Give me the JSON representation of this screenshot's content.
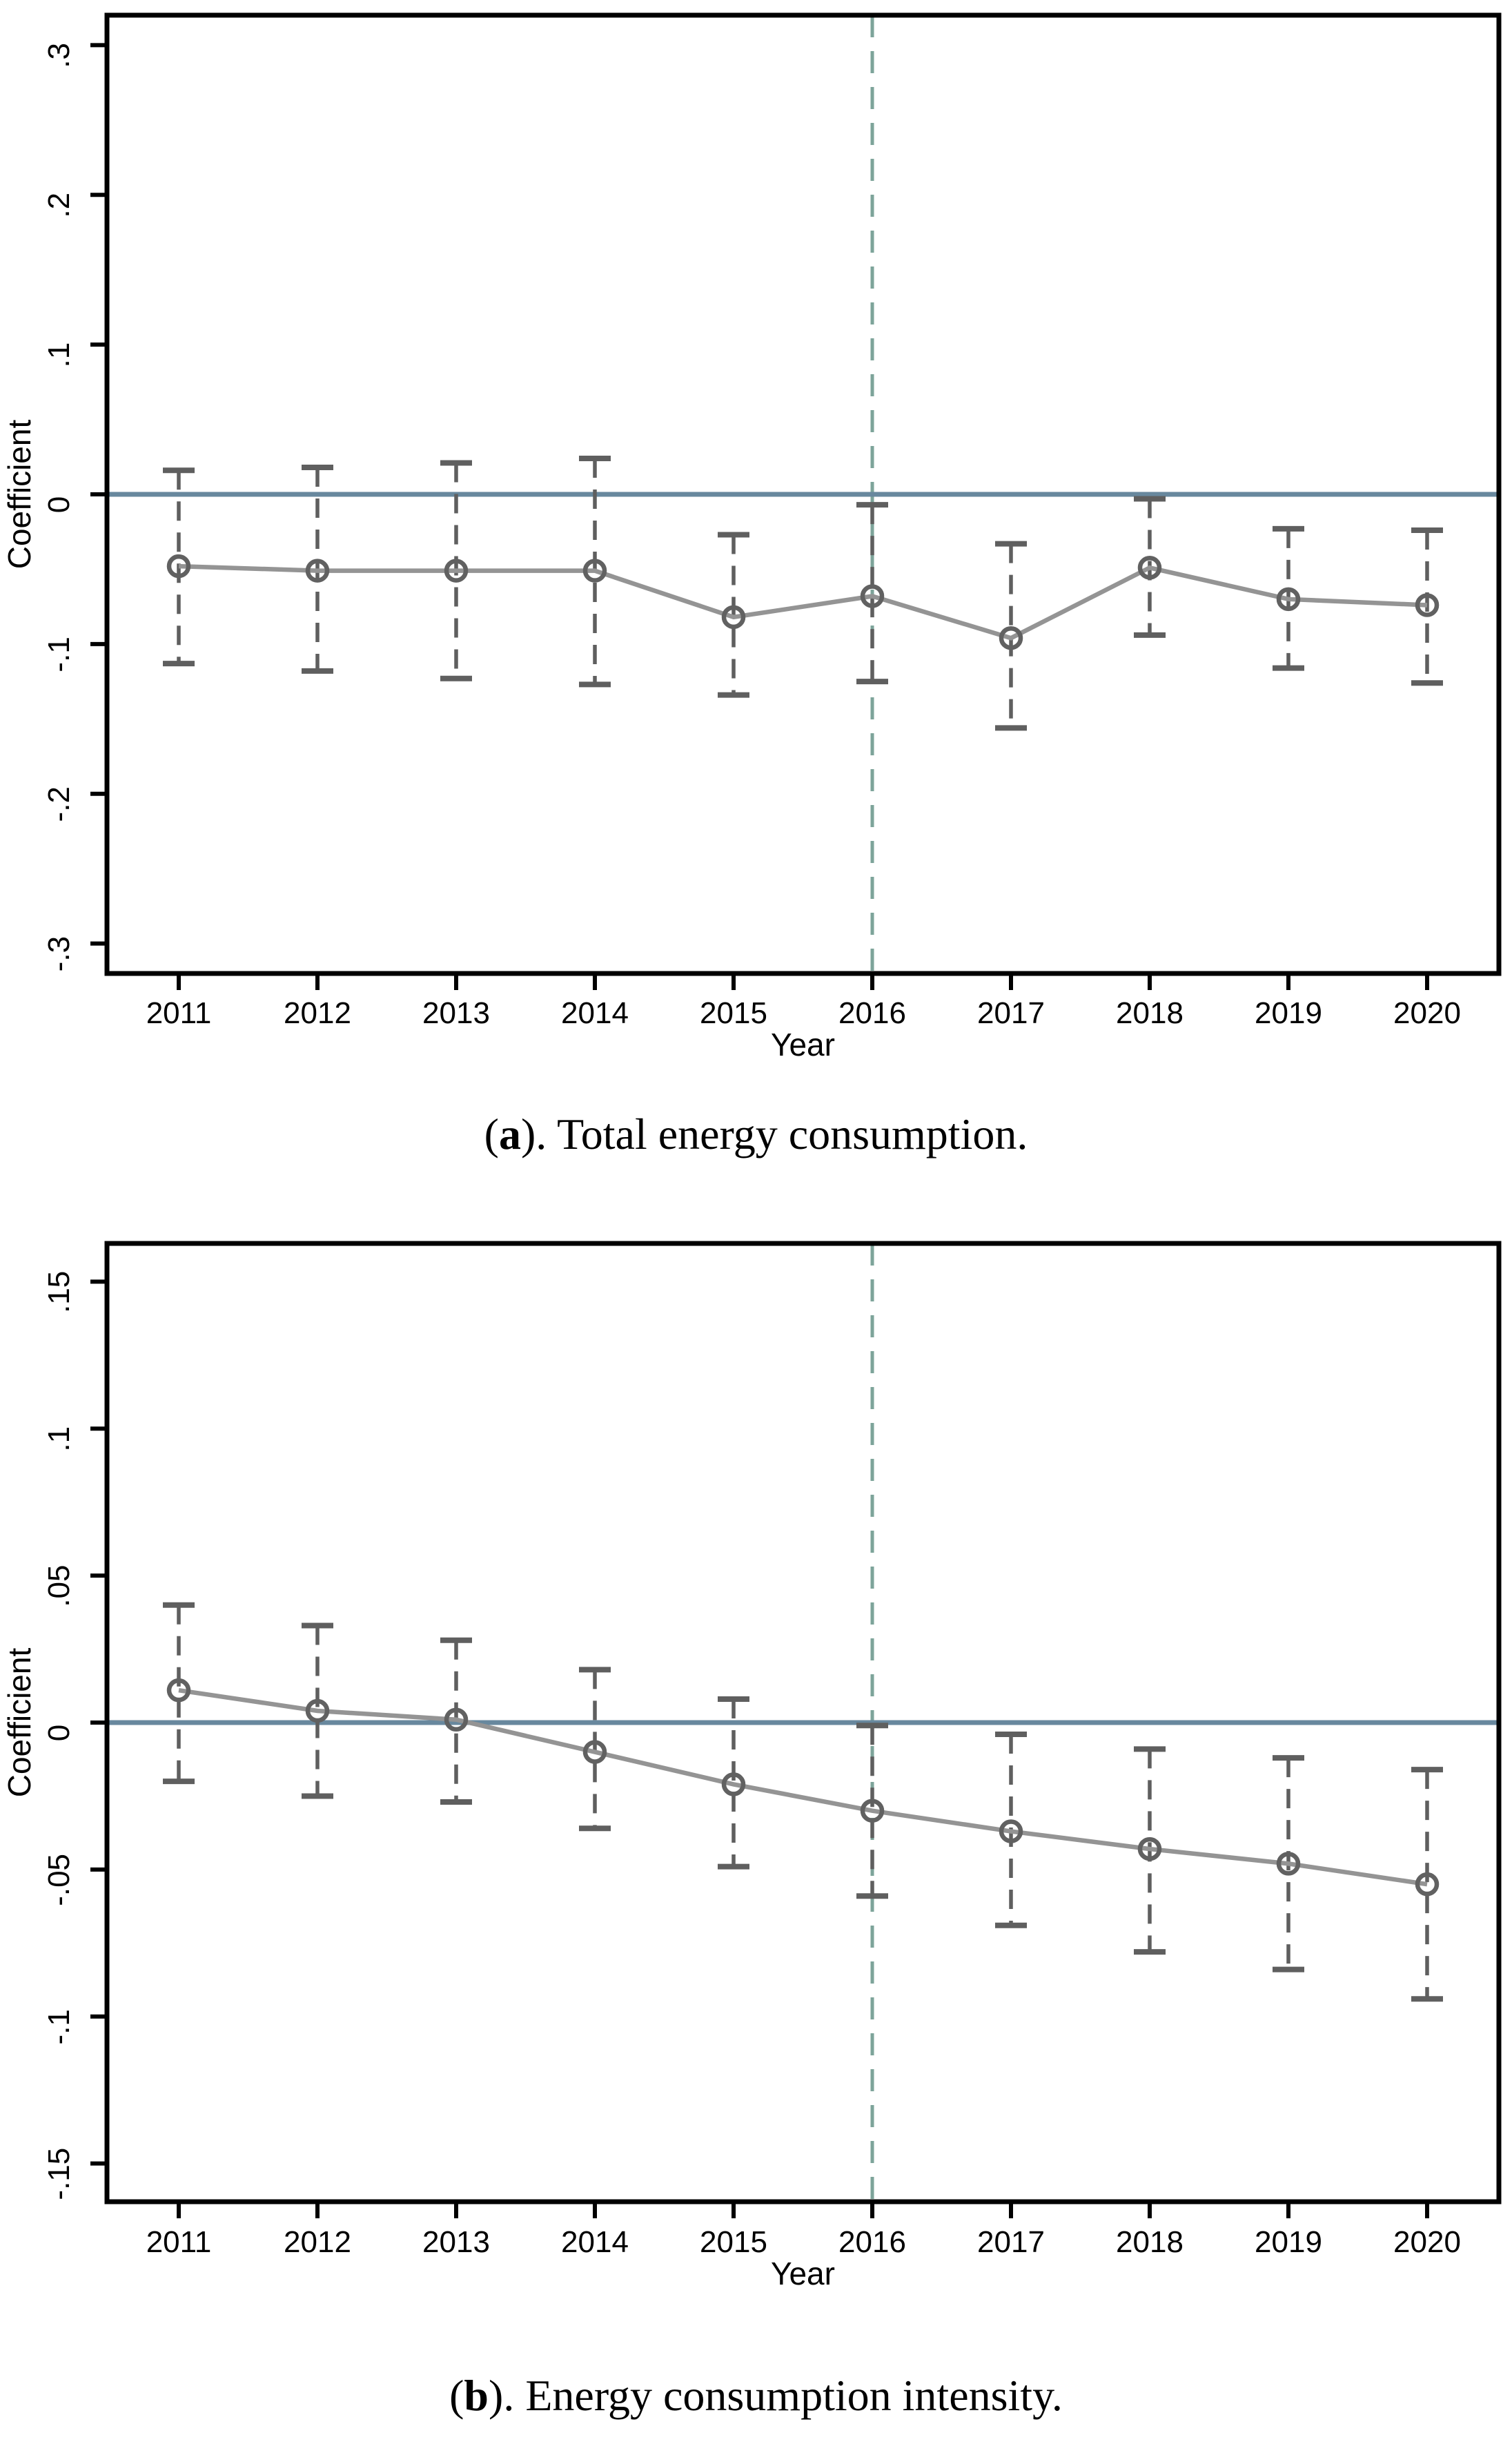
{
  "page": {
    "background": "#ffffff",
    "description_labels": {
      "y_axis_title": "Coefficient",
      "x_axis_title": "Year"
    }
  },
  "colors": {
    "axis": "#000000",
    "text": "#000000",
    "zero_line": "#68889e",
    "treatment_vline": "#7da49a",
    "ci": "#5f5f5f",
    "marker": "#616161",
    "trend_line": "#949494"
  },
  "chart_data": [
    {
      "type": "line",
      "panel": "a",
      "caption": {
        "pre": "(",
        "bold": "a",
        "post": "). Total energy consumption."
      },
      "xlabel": "Year",
      "ylabel": "Coefficient",
      "x": [
        2011,
        2012,
        2013,
        2014,
        2015,
        2016,
        2017,
        2018,
        2019,
        2020
      ],
      "series": [
        {
          "name": "coefficient",
          "values": [
            -0.048,
            -0.051,
            -0.051,
            -0.051,
            -0.082,
            -0.068,
            -0.096,
            -0.049,
            -0.07,
            -0.074
          ]
        }
      ],
      "ci_low": [
        -0.113,
        -0.118,
        -0.123,
        -0.127,
        -0.134,
        -0.125,
        -0.156,
        -0.094,
        -0.116,
        -0.126
      ],
      "ci_high": [
        0.016,
        0.018,
        0.021,
        0.024,
        -0.027,
        -0.007,
        -0.033,
        -0.003,
        -0.023,
        -0.024
      ],
      "yticks": [
        {
          "v": 0.3,
          "label": ".3"
        },
        {
          "v": 0.2,
          "label": ".2"
        },
        {
          "v": 0.1,
          "label": ".1"
        },
        {
          "v": 0,
          "label": "0"
        },
        {
          "v": -0.1,
          "label": "-.1"
        },
        {
          "v": -0.2,
          "label": "-.2"
        },
        {
          "v": -0.3,
          "label": "-.3"
        }
      ],
      "ylim": [
        -0.32,
        0.32
      ],
      "ref_line_y": 0,
      "vline_x": 2016,
      "grid": false,
      "legend": false
    },
    {
      "type": "line",
      "panel": "b",
      "caption": {
        "pre": "(",
        "bold": "b",
        "post": "). Energy consumption intensity."
      },
      "xlabel": "Year",
      "ylabel": "Coefficient",
      "x": [
        2011,
        2012,
        2013,
        2014,
        2015,
        2016,
        2017,
        2018,
        2019,
        2020
      ],
      "series": [
        {
          "name": "coefficient",
          "values": [
            0.011,
            0.004,
            0.001,
            -0.01,
            -0.021,
            -0.03,
            -0.037,
            -0.043,
            -0.048,
            -0.055
          ]
        }
      ],
      "ci_low": [
        -0.02,
        -0.025,
        -0.027,
        -0.036,
        -0.049,
        -0.059,
        -0.069,
        -0.078,
        -0.084,
        -0.094
      ],
      "ci_high": [
        0.04,
        0.033,
        0.028,
        0.018,
        0.008,
        -0.001,
        -0.004,
        -0.009,
        -0.012,
        -0.016
      ],
      "yticks": [
        {
          "v": 0.15,
          "label": ".15"
        },
        {
          "v": 0.1,
          "label": ".1"
        },
        {
          "v": 0.05,
          "label": ".05"
        },
        {
          "v": 0,
          "label": "0"
        },
        {
          "v": -0.05,
          "label": "-.05"
        },
        {
          "v": -0.1,
          "label": "-.1"
        },
        {
          "v": -0.15,
          "label": "-.15"
        }
      ],
      "ylim": [
        -0.163,
        0.163
      ],
      "ref_line_y": 0,
      "vline_x": 2016,
      "grid": false,
      "legend": false
    }
  ]
}
